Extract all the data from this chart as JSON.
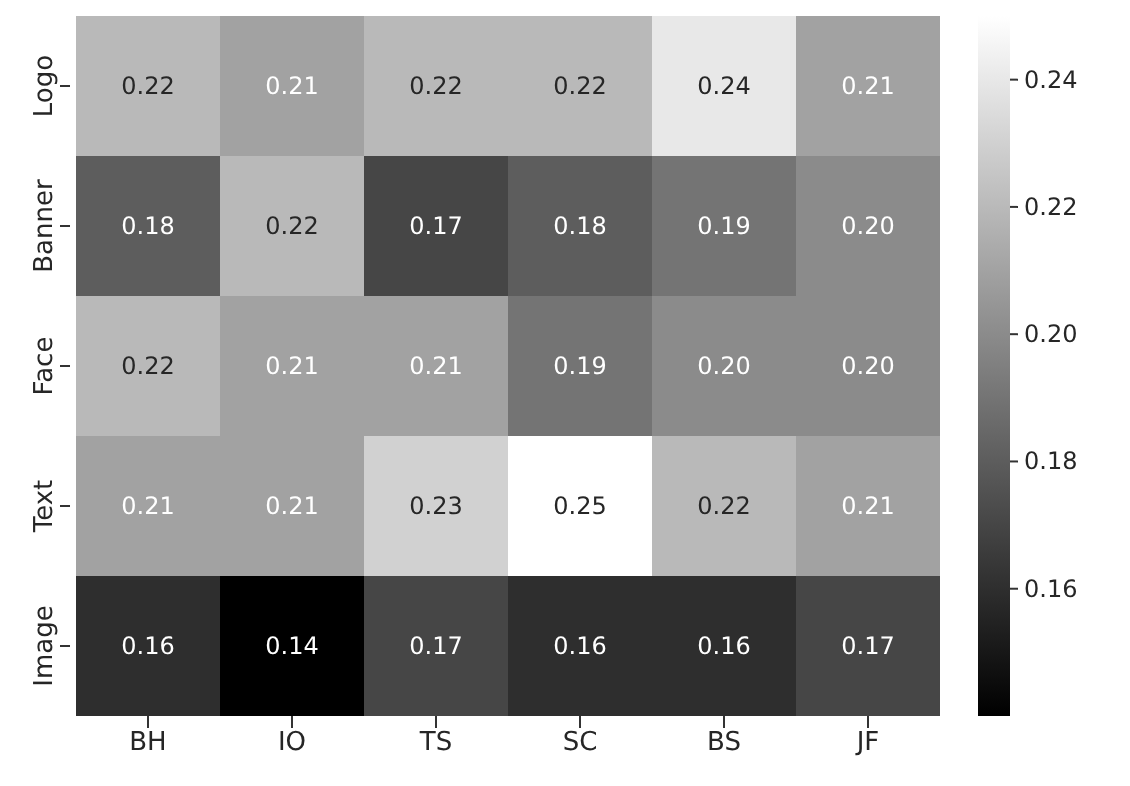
{
  "chart_data": {
    "type": "heatmap",
    "categories": [
      "BH",
      "IO",
      "TS",
      "SC",
      "BS",
      "JF"
    ],
    "y_categories": [
      "Logo",
      "Banner",
      "Face",
      "Text",
      "Image"
    ],
    "cells": [
      [
        0.22,
        0.21,
        0.22,
        0.22,
        0.24,
        0.21
      ],
      [
        0.18,
        0.22,
        0.17,
        0.18,
        0.19,
        0.2
      ],
      [
        0.22,
        0.21,
        0.21,
        0.19,
        0.2,
        0.2
      ],
      [
        0.21,
        0.21,
        0.23,
        0.25,
        0.22,
        0.21
      ],
      [
        0.16,
        0.14,
        0.17,
        0.16,
        0.16,
        0.17
      ]
    ],
    "cell_labels": [
      [
        "0.22",
        "0.21",
        "0.22",
        "0.22",
        "0.24",
        "0.21"
      ],
      [
        "0.18",
        "0.22",
        "0.17",
        "0.18",
        "0.19",
        "0.20"
      ],
      [
        "0.22",
        "0.21",
        "0.21",
        "0.19",
        "0.20",
        "0.20"
      ],
      [
        "0.21",
        "0.21",
        "0.23",
        "0.25",
        "0.22",
        "0.21"
      ],
      [
        "0.16",
        "0.14",
        "0.17",
        "0.16",
        "0.16",
        "0.17"
      ]
    ],
    "clim": [
      0.14,
      0.25
    ],
    "cticks": [
      {
        "value": 0.16,
        "label": "0.16"
      },
      {
        "value": 0.18,
        "label": "0.18"
      },
      {
        "value": 0.2,
        "label": "0.20"
      },
      {
        "value": 0.22,
        "label": "0.22"
      },
      {
        "value": 0.24,
        "label": "0.24"
      }
    ]
  }
}
